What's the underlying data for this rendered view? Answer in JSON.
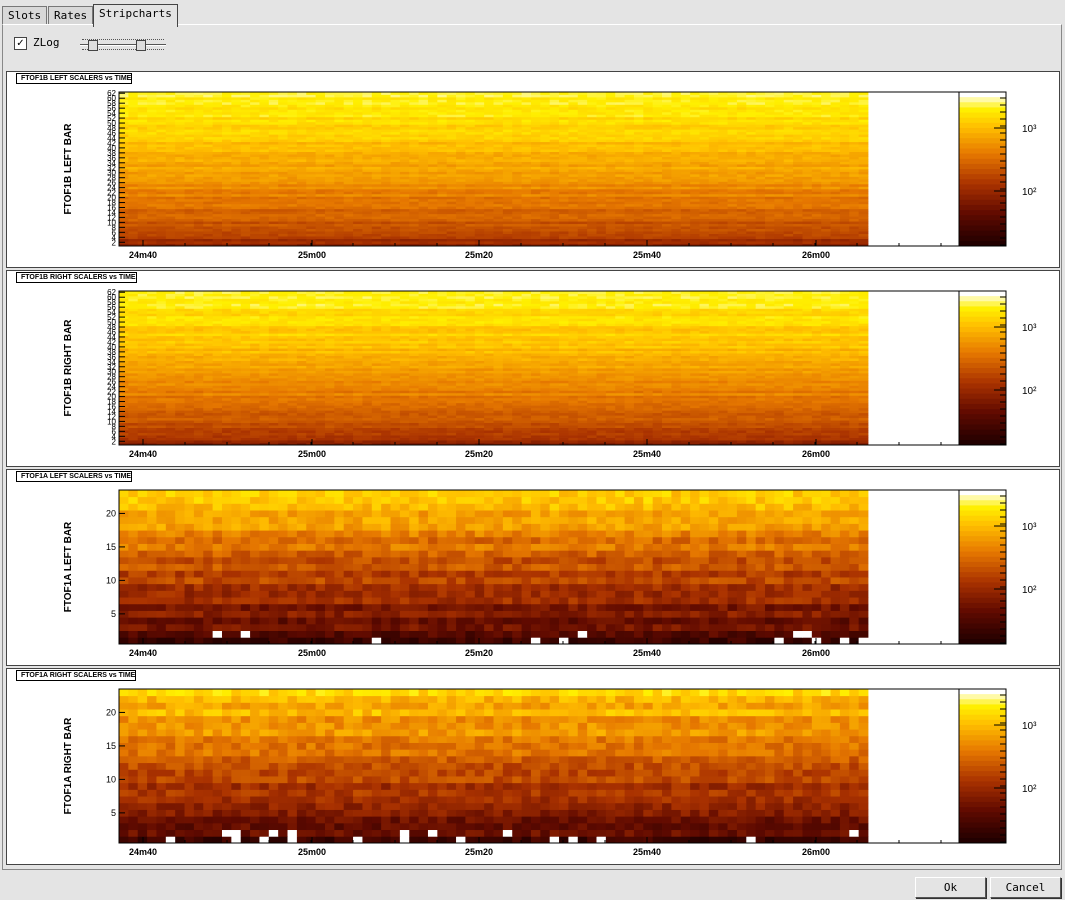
{
  "tabs": [
    {
      "label": "Slots"
    },
    {
      "label": "Rates"
    },
    {
      "label": "Stripcharts",
      "active": true
    }
  ],
  "toolbar": {
    "zlog_label": "ZLog",
    "zlog_checked": "✓"
  },
  "panels": [
    {
      "title": "FTOF1B LEFT SCALERS vs TIME",
      "ylabel": "FTOF1B LEFT BAR",
      "rows": 62,
      "yticks": [
        "2",
        "4",
        "6",
        "8",
        "10",
        "12",
        "14",
        "16",
        "18",
        "20",
        "22",
        "24",
        "26",
        "28",
        "30",
        "32",
        "34",
        "36",
        "38",
        "40",
        "42",
        "44",
        "46",
        "48",
        "50",
        "52",
        "54",
        "56",
        "58",
        "60",
        "62"
      ],
      "xticks": [
        "24m40",
        "25m00",
        "25m20",
        "25m40",
        "26m00"
      ],
      "zticks": [
        "10³",
        "10²"
      ],
      "dense": true,
      "side": "left"
    },
    {
      "title": "FTOF1B RIGHT SCALERS vs TIME",
      "ylabel": "FTOF1B RIGHT BAR",
      "rows": 62,
      "yticks": [
        "2",
        "4",
        "6",
        "8",
        "10",
        "12",
        "14",
        "16",
        "18",
        "20",
        "22",
        "24",
        "26",
        "28",
        "30",
        "32",
        "34",
        "36",
        "38",
        "40",
        "42",
        "44",
        "46",
        "48",
        "50",
        "52",
        "54",
        "56",
        "58",
        "60",
        "62"
      ],
      "xticks": [
        "24m40",
        "25m00",
        "25m20",
        "25m40",
        "26m00"
      ],
      "zticks": [
        "10³",
        "10²"
      ],
      "dense": true,
      "side": "right"
    },
    {
      "title": "FTOF1A LEFT SCALERS vs TIME",
      "ylabel": "FTOF1A LEFT BAR",
      "rows": 23,
      "yticks": [
        "5",
        "10",
        "15",
        "20"
      ],
      "xticks": [
        "24m40",
        "25m00",
        "25m20",
        "25m40",
        "26m00"
      ],
      "zticks": [
        "10³",
        "10²"
      ],
      "dense": false,
      "side": "left"
    },
    {
      "title": "FTOF1A RIGHT SCALERS vs TIME",
      "ylabel": "FTOF1A RIGHT BAR",
      "rows": 23,
      "yticks": [
        "5",
        "10",
        "15",
        "20"
      ],
      "xticks": [
        "24m40",
        "25m00",
        "25m20",
        "25m40",
        "26m00"
      ],
      "zticks": [
        "10³",
        "10²"
      ],
      "dense": false,
      "side": "right"
    }
  ],
  "buttons": {
    "ok": "Ok",
    "cancel": "Cancel"
  }
}
